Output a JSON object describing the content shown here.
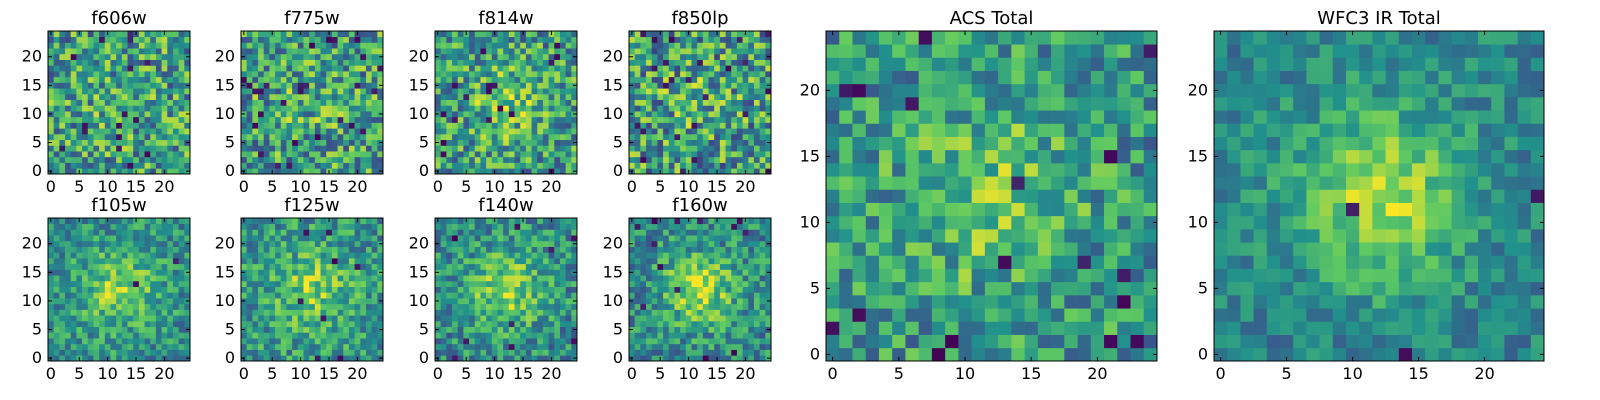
{
  "figure": {
    "background": "#ffffff",
    "colormap": [
      "#440154",
      "#3b528b",
      "#21918c",
      "#5ec962",
      "#fde725"
    ]
  },
  "chart_data": [
    {
      "type": "heatmap",
      "title": "f606w",
      "grid": [
        25,
        25
      ],
      "xlim": [
        -0.5,
        24.5
      ],
      "ylim": [
        -0.5,
        24.5
      ],
      "xticks": [
        "0",
        "5",
        "10",
        "15",
        "20"
      ],
      "yticks": [
        "0",
        "5",
        "10",
        "15",
        "20"
      ],
      "seed": 11,
      "center_strength": 0.05,
      "noise": 0.34,
      "dark_fraction": 0.03,
      "base": 0.56
    },
    {
      "type": "heatmap",
      "title": "f775w",
      "grid": [
        25,
        25
      ],
      "xlim": [
        -0.5,
        24.5
      ],
      "ylim": [
        -0.5,
        24.5
      ],
      "xticks": [
        "0",
        "5",
        "10",
        "15",
        "20"
      ],
      "yticks": [
        "0",
        "5",
        "10",
        "15",
        "20"
      ],
      "seed": 23,
      "center_strength": 0.08,
      "noise": 0.34,
      "dark_fraction": 0.04,
      "base": 0.56
    },
    {
      "type": "heatmap",
      "title": "f814w",
      "grid": [
        25,
        25
      ],
      "xlim": [
        -0.5,
        24.5
      ],
      "ylim": [
        -0.5,
        24.5
      ],
      "xticks": [
        "0",
        "5",
        "10",
        "15",
        "20"
      ],
      "yticks": [
        "0",
        "5",
        "10",
        "15",
        "20"
      ],
      "seed": 37,
      "center_strength": 0.18,
      "noise": 0.32,
      "dark_fraction": 0.03,
      "base": 0.55
    },
    {
      "type": "heatmap",
      "title": "f850lp",
      "grid": [
        25,
        25
      ],
      "xlim": [
        -0.5,
        24.5
      ],
      "ylim": [
        -0.5,
        24.5
      ],
      "xticks": [
        "0",
        "5",
        "10",
        "15",
        "20"
      ],
      "yticks": [
        "0",
        "5",
        "10",
        "15",
        "20"
      ],
      "seed": 41,
      "center_strength": 0.08,
      "noise": 0.36,
      "dark_fraction": 0.05,
      "base": 0.55
    },
    {
      "type": "heatmap",
      "title": "f105w",
      "grid": [
        25,
        25
      ],
      "xlim": [
        -0.5,
        24.5
      ],
      "ylim": [
        -0.5,
        24.5
      ],
      "xticks": [
        "0",
        "5",
        "10",
        "15",
        "20"
      ],
      "yticks": [
        "0",
        "5",
        "10",
        "15",
        "20"
      ],
      "seed": 53,
      "center_strength": 0.32,
      "noise": 0.22,
      "dark_fraction": 0.01,
      "base": 0.5
    },
    {
      "type": "heatmap",
      "title": "f125w",
      "grid": [
        25,
        25
      ],
      "xlim": [
        -0.5,
        24.5
      ],
      "ylim": [
        -0.5,
        24.5
      ],
      "xticks": [
        "0",
        "5",
        "10",
        "15",
        "20"
      ],
      "yticks": [
        "0",
        "5",
        "10",
        "15",
        "20"
      ],
      "seed": 67,
      "center_strength": 0.26,
      "noise": 0.24,
      "dark_fraction": 0.01,
      "base": 0.53
    },
    {
      "type": "heatmap",
      "title": "f140w",
      "grid": [
        25,
        25
      ],
      "xlim": [
        -0.5,
        24.5
      ],
      "ylim": [
        -0.5,
        24.5
      ],
      "xticks": [
        "0",
        "5",
        "10",
        "15",
        "20"
      ],
      "yticks": [
        "0",
        "5",
        "10",
        "15",
        "20"
      ],
      "seed": 79,
      "center_strength": 0.34,
      "noise": 0.24,
      "dark_fraction": 0.02,
      "base": 0.48
    },
    {
      "type": "heatmap",
      "title": "f160w",
      "grid": [
        25,
        25
      ],
      "xlim": [
        -0.5,
        24.5
      ],
      "ylim": [
        -0.5,
        24.5
      ],
      "xticks": [
        "0",
        "5",
        "10",
        "15",
        "20"
      ],
      "yticks": [
        "0",
        "5",
        "10",
        "15",
        "20"
      ],
      "seed": 97,
      "center_strength": 0.38,
      "noise": 0.24,
      "dark_fraction": 0.02,
      "base": 0.47
    },
    {
      "type": "heatmap",
      "title": "ACS Total",
      "grid": [
        25,
        25
      ],
      "xlim": [
        -0.5,
        24.5
      ],
      "ylim": [
        -0.5,
        24.5
      ],
      "xticks": [
        "0",
        "5",
        "10",
        "15",
        "20"
      ],
      "yticks": [
        "0",
        "5",
        "10",
        "15",
        "20"
      ],
      "seed": 113,
      "center_strength": 0.24,
      "noise": 0.26,
      "dark_fraction": 0.03,
      "base": 0.52
    },
    {
      "type": "heatmap",
      "title": "WFC3 IR Total",
      "grid": [
        25,
        25
      ],
      "xlim": [
        -0.5,
        24.5
      ],
      "ylim": [
        -0.5,
        24.5
      ],
      "xticks": [
        "0",
        "5",
        "10",
        "15",
        "20"
      ],
      "yticks": [
        "0",
        "5",
        "10",
        "15",
        "20"
      ],
      "seed": 131,
      "center_strength": 0.42,
      "noise": 0.16,
      "dark_fraction": 0.01,
      "base": 0.45
    }
  ]
}
